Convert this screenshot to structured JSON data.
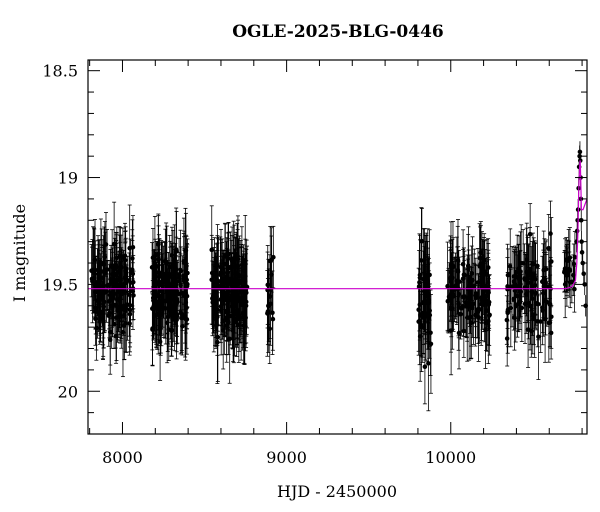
{
  "chart_data": {
    "type": "scatter",
    "title": "OGLE-2025-BLG-0446",
    "xlabel": "HJD - 2450000",
    "ylabel": "I magnitude",
    "xlim": [
      7790,
      10830
    ],
    "ylim": [
      20.2,
      18.45
    ],
    "y_inverted": true,
    "grid": false,
    "x_ticks": [
      8000,
      9000,
      10000
    ],
    "x_tick_labels": [
      "8000",
      "9000",
      "10000"
    ],
    "y_ticks": [
      18.5,
      19,
      19.5,
      20
    ],
    "y_tick_labels": [
      "18.5",
      "19",
      "19.5",
      "20"
    ],
    "colors": {
      "data": "#000000",
      "model": "#cc00cc"
    },
    "series": [
      {
        "type": "scatter_errorbars",
        "seasons": [
          {
            "x_range": [
              7810,
              8070
            ],
            "mean_mag": 19.53,
            "scatter": 0.09,
            "err": 0.16,
            "n": 150
          },
          {
            "x_range": [
              8180,
              8400
            ],
            "mean_mag": 19.53,
            "scatter": 0.09,
            "err": 0.16,
            "n": 150
          },
          {
            "x_range": [
              8540,
              8760
            ],
            "mean_mag": 19.53,
            "scatter": 0.09,
            "err": 0.17,
            "n": 170
          },
          {
            "x_range": [
              8880,
              8920
            ],
            "mean_mag": 19.55,
            "scatter": 0.12,
            "err": 0.18,
            "n": 15
          },
          {
            "x_range": [
              9800,
              9880
            ],
            "mean_mag": 19.55,
            "scatter": 0.12,
            "err": 0.19,
            "n": 50
          },
          {
            "x_range": [
              9980,
              10240
            ],
            "mean_mag": 19.54,
            "scatter": 0.09,
            "err": 0.16,
            "n": 120
          },
          {
            "x_range": [
              10340,
              10620
            ],
            "mean_mag": 19.54,
            "scatter": 0.1,
            "err": 0.16,
            "n": 100
          },
          {
            "x_range": [
              10690,
              10760
            ],
            "mean_mag": 19.4,
            "scatter": 0.08,
            "err": 0.12,
            "n": 20
          }
        ],
        "event": {
          "t0": 10788,
          "x_range": [
            10765,
            10825
          ],
          "peak_mag": 18.9,
          "points": [
            [
              10766,
              19.3
            ],
            [
              10770,
              19.25
            ],
            [
              10773,
              19.2
            ],
            [
              10776,
              19.15
            ],
            [
              10779,
              19.05
            ],
            [
              10782,
              18.95
            ],
            [
              10785,
              18.9
            ],
            [
              10787,
              18.88
            ],
            [
              10789,
              18.92
            ],
            [
              10791,
              19.0
            ],
            [
              10793,
              19.1
            ],
            [
              10795,
              19.2
            ],
            [
              10797,
              19.3
            ],
            [
              10800,
              19.35
            ],
            [
              10804,
              19.4
            ],
            [
              10810,
              19.45
            ],
            [
              10816,
              19.5
            ],
            [
              10822,
              19.6
            ]
          ]
        }
      },
      {
        "type": "line",
        "baseline_mag": 19.52,
        "points": [
          [
            7790,
            19.52
          ],
          [
            10700,
            19.52
          ],
          [
            10740,
            19.51
          ],
          [
            10760,
            19.48
          ],
          [
            10768,
            19.4
          ],
          [
            10775,
            19.25
          ],
          [
            10780,
            19.05
          ],
          [
            10785,
            18.95
          ],
          [
            10788,
            18.92
          ],
          [
            10790,
            18.95
          ],
          [
            10793,
            19.05
          ],
          [
            10796,
            19.15
          ],
          [
            10800,
            19.15
          ],
          [
            10806,
            19.15
          ],
          [
            10830,
            19.1
          ]
        ]
      }
    ]
  }
}
